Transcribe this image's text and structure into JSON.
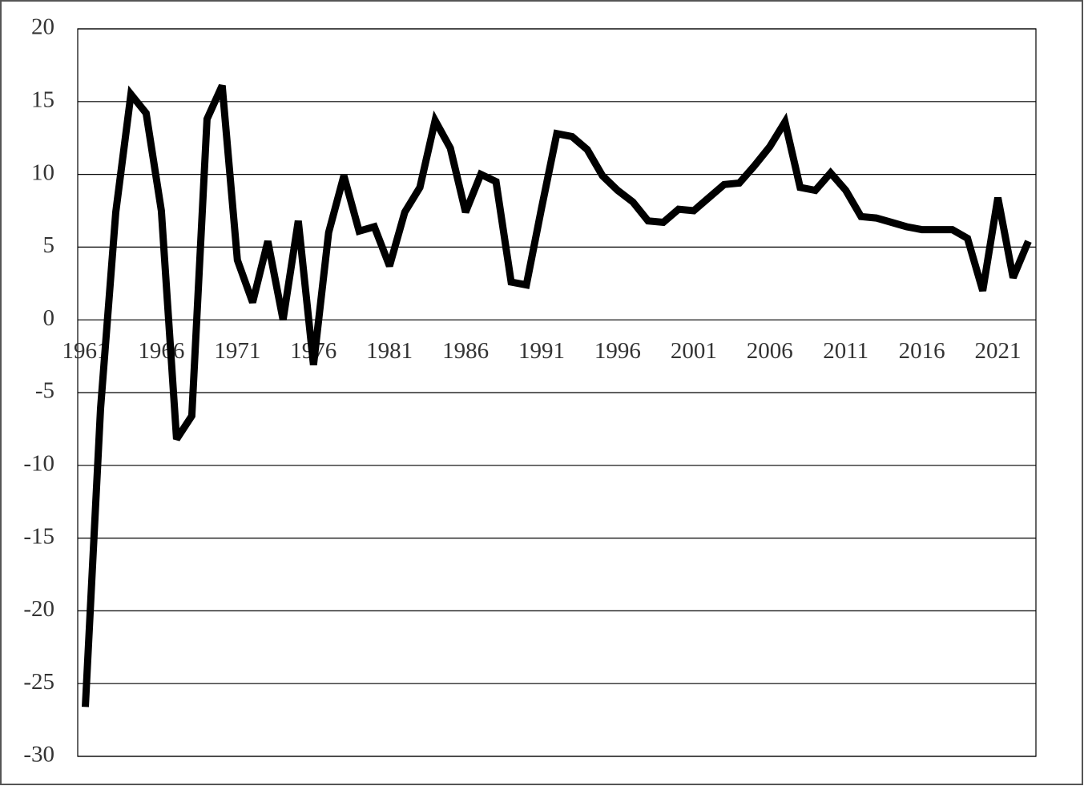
{
  "chart_data": {
    "type": "line",
    "categories": [
      "1961",
      null,
      null,
      null,
      null,
      "1966",
      null,
      null,
      null,
      null,
      "1971",
      null,
      null,
      null,
      null,
      "1976",
      null,
      null,
      null,
      null,
      "1981",
      null,
      null,
      null,
      null,
      "1986",
      null,
      null,
      null,
      null,
      "1991",
      null,
      null,
      null,
      null,
      "1996",
      null,
      null,
      null,
      null,
      "2001",
      null,
      null,
      null,
      null,
      "2006",
      null,
      null,
      null,
      null,
      "2011",
      null,
      null,
      null,
      null,
      "2016",
      null,
      null,
      null,
      null,
      "2021",
      null,
      null
    ],
    "values": [
      -26.6,
      -6.1,
      7.4,
      15.5,
      14.2,
      7.5,
      -8.2,
      -6.6,
      13.8,
      16.1,
      4.1,
      1.2,
      5.4,
      0.0,
      6.8,
      -3.1,
      6.0,
      9.9,
      6.1,
      6.4,
      3.7,
      7.4,
      9.1,
      13.7,
      11.8,
      7.4,
      10.0,
      9.5,
      2.6,
      2.4,
      7.7,
      12.8,
      12.6,
      11.7,
      9.9,
      8.9,
      8.1,
      6.8,
      6.7,
      7.6,
      7.5,
      8.4,
      9.3,
      9.4,
      10.6,
      11.9,
      13.6,
      9.1,
      8.9,
      10.1,
      8.9,
      7.1,
      7.0,
      6.7,
      6.4,
      6.2,
      6.2,
      6.2,
      5.6,
      2.0,
      8.4,
      2.9,
      5.4
    ],
    "color": "#000000",
    "ylim": [
      -30,
      20
    ],
    "yticks": [
      -30,
      -25,
      -20,
      -15,
      -10,
      -5,
      0,
      5,
      10,
      15,
      20
    ],
    "grid": true
  }
}
